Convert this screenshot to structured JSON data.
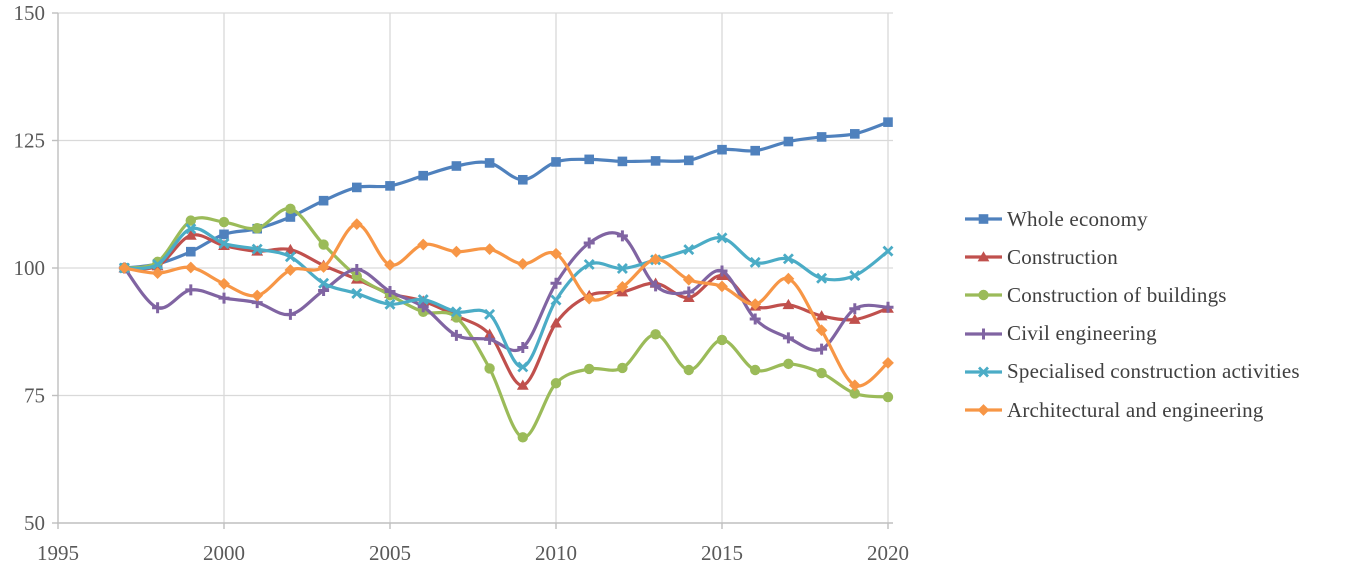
{
  "chart_data": {
    "type": "line",
    "title": "",
    "xlabel": "",
    "ylabel": "",
    "xlim": [
      1995,
      2020
    ],
    "ylim": [
      50,
      150
    ],
    "x_ticks": [
      1995,
      2000,
      2005,
      2010,
      2015,
      2020
    ],
    "y_ticks": [
      50,
      75,
      100,
      125,
      150
    ],
    "grid": true,
    "legend_position": "right",
    "grid_color": "#d9d9d9",
    "axis_color": "#bfbfbf",
    "axis_label_color": "#595959",
    "legend_text_color": "#3f3f3f",
    "x": [
      1997,
      1998,
      1999,
      2000,
      2001,
      2002,
      2003,
      2004,
      2005,
      2006,
      2007,
      2008,
      2009,
      2010,
      2011,
      2012,
      2013,
      2014,
      2015,
      2016,
      2017,
      2018,
      2019,
      2020
    ],
    "series": [
      {
        "name": "Whole economy",
        "color": "#4f81bd",
        "marker": "square",
        "values": [
          100,
          100.8,
          103.2,
          106.6,
          107.7,
          110.0,
          113.2,
          115.8,
          116.1,
          118.1,
          120.0,
          120.6,
          117.3,
          120.8,
          121.3,
          120.9,
          121.0,
          121.1,
          123.2,
          123.0,
          124.8,
          125.7,
          126.3,
          128.6
        ]
      },
      {
        "name": "Construction",
        "color": "#c0504d",
        "marker": "triangle",
        "values": [
          100,
          100.4,
          106.4,
          104.4,
          103.3,
          103.6,
          100.5,
          97.8,
          95.0,
          93.5,
          90.6,
          87.0,
          77.0,
          89.2,
          94.6,
          95.3,
          97.0,
          94.2,
          98.5,
          92.5,
          92.8,
          90.6,
          89.9,
          92.1
        ]
      },
      {
        "name": "Construction of buildings",
        "color": "#9bbb59",
        "marker": "circle",
        "values": [
          100,
          101.2,
          109.3,
          109.0,
          107.8,
          111.6,
          104.6,
          98.4,
          94.7,
          91.4,
          90.3,
          80.3,
          66.8,
          77.4,
          80.2,
          80.4,
          87.0,
          80.0,
          85.9,
          80.0,
          81.2,
          79.4,
          75.4,
          74.7
        ]
      },
      {
        "name": "Civil engineering",
        "color": "#8064a2",
        "marker": "plus",
        "values": [
          100,
          92.2,
          95.7,
          94.1,
          93.2,
          90.9,
          95.6,
          99.7,
          95.4,
          92.4,
          86.8,
          86.0,
          84.4,
          97.0,
          104.9,
          106.3,
          96.5,
          95.3,
          99.4,
          90.0,
          86.3,
          84.1,
          92.0,
          92.3
        ]
      },
      {
        "name": "Specialised construction activities",
        "color": "#4bacc6",
        "marker": "x",
        "values": [
          100,
          100.7,
          107.7,
          104.8,
          103.7,
          102.2,
          97.0,
          95.0,
          92.9,
          93.8,
          91.4,
          90.9,
          80.6,
          93.7,
          100.7,
          99.9,
          101.6,
          103.6,
          105.9,
          101.1,
          101.8,
          98.0,
          98.5,
          103.3
        ]
      },
      {
        "name": "Architectural and engineering",
        "color": "#f79646",
        "marker": "diamond",
        "values": [
          100,
          99.0,
          100.1,
          96.9,
          94.6,
          99.6,
          100.2,
          108.6,
          100.6,
          104.6,
          103.2,
          103.7,
          100.8,
          102.8,
          94.0,
          96.3,
          101.7,
          97.7,
          96.4,
          92.9,
          97.9,
          87.8,
          77.0,
          81.4
        ]
      }
    ]
  }
}
